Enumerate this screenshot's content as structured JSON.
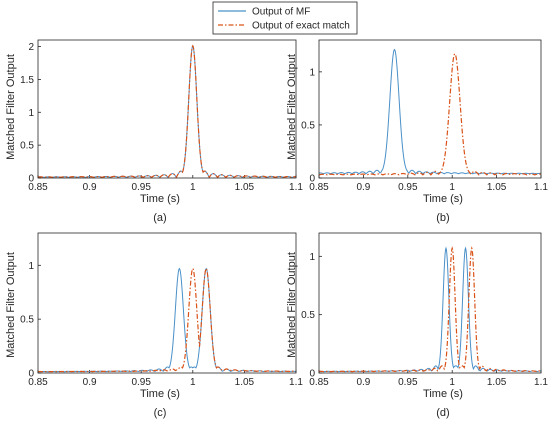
{
  "legend": {
    "placement": "top-center",
    "entries": [
      {
        "label": "Output of MF",
        "color": "#4a90c8",
        "style": "solid"
      },
      {
        "label": "Output of exact match",
        "color": "#d95319",
        "style": "dash-dot"
      }
    ]
  },
  "chart_data": [
    {
      "type": "line",
      "panel_label": "(a)",
      "xlabel": "Time (s)",
      "ylabel": "Matched Filter Output",
      "xlim": [
        0.85,
        1.1
      ],
      "ylim": [
        0,
        2.1
      ],
      "xticks": [
        "0.85",
        "0.9",
        "0.95",
        "1",
        "1.05",
        "1.1"
      ],
      "yticks": [
        "0",
        "0.5",
        "1",
        "1.5",
        "2"
      ],
      "ytick_values": [
        0,
        0.5,
        1,
        1.5,
        2
      ],
      "series": [
        {
          "name": "Output of MF",
          "center": 1.0,
          "peak": 2.0,
          "mainlobe_halfwidth": 0.006,
          "sidelobe_spacing": 0.008,
          "floor": 0.01
        },
        {
          "name": "Output of exact match",
          "center": 1.0,
          "peak": 2.0,
          "mainlobe_halfwidth": 0.006,
          "sidelobe_spacing": 0.008,
          "floor": 0.01
        }
      ]
    },
    {
      "type": "line",
      "panel_label": "(b)",
      "xlabel": "Time (s)",
      "ylabel": "Matched Filter Output",
      "xlim": [
        0.85,
        1.1
      ],
      "ylim": [
        0,
        1.3
      ],
      "xticks": [
        "0.85",
        "0.9",
        "0.95",
        "1",
        "1.05",
        "1.1"
      ],
      "yticks": [
        "0",
        "0.5",
        "1"
      ],
      "ytick_values": [
        0,
        0.5,
        1
      ],
      "series": [
        {
          "name": "Output of MF",
          "center": 0.935,
          "peak": 1.17,
          "mainlobe_halfwidth": 0.008,
          "sidelobe_spacing": 0.008,
          "floor": 0.04
        },
        {
          "name": "Output of exact match",
          "center": 1.003,
          "peak": 1.14,
          "mainlobe_halfwidth": 0.009,
          "sidelobe_spacing": 0.009,
          "floor": 0.03
        }
      ]
    },
    {
      "type": "line",
      "panel_label": "(c)",
      "xlabel": "Time (s)",
      "ylabel": "Matched Filter Output",
      "xlim": [
        0.85,
        1.1
      ],
      "ylim": [
        0,
        1.3
      ],
      "xticks": [
        "0.85",
        "0.9",
        "0.95",
        "1",
        "1.05",
        "1.1"
      ],
      "yticks": [
        "0",
        "0.5",
        "1"
      ],
      "ytick_values": [
        0,
        0.5,
        1
      ],
      "series": [
        {
          "name": "Output of MF",
          "centers": [
            0.987,
            1.013
          ],
          "peak": 0.96,
          "mainlobe_halfwidth": 0.006,
          "sidelobe_spacing": 0.008,
          "floor": 0.01
        },
        {
          "name": "Output of exact match",
          "centers": [
            1.0,
            1.013
          ],
          "peak": 0.96,
          "mainlobe_halfwidth": 0.006,
          "sidelobe_spacing": 0.008,
          "floor": 0.01
        }
      ]
    },
    {
      "type": "line",
      "panel_label": "(d)",
      "xlabel": "Time (s)",
      "ylabel": "Matched Filter Output",
      "xlim": [
        0.85,
        1.1
      ],
      "ylim": [
        0,
        1.2
      ],
      "xticks": [
        "0.85",
        "0.9",
        "0.95",
        "1",
        "1.05",
        "1.1"
      ],
      "yticks": [
        "0",
        "0.5",
        "1"
      ],
      "ytick_values": [
        0,
        0.5,
        1
      ],
      "series": [
        {
          "name": "Output of MF",
          "centers": [
            0.993,
            1.015
          ],
          "peak": 1.06,
          "mainlobe_halfwidth": 0.005,
          "sidelobe_spacing": 0.008,
          "floor": 0.01
        },
        {
          "name": "Output of exact match",
          "centers": [
            1.0,
            1.022
          ],
          "peak": 1.06,
          "mainlobe_halfwidth": 0.005,
          "sidelobe_spacing": 0.008,
          "floor": 0.01
        }
      ]
    }
  ]
}
